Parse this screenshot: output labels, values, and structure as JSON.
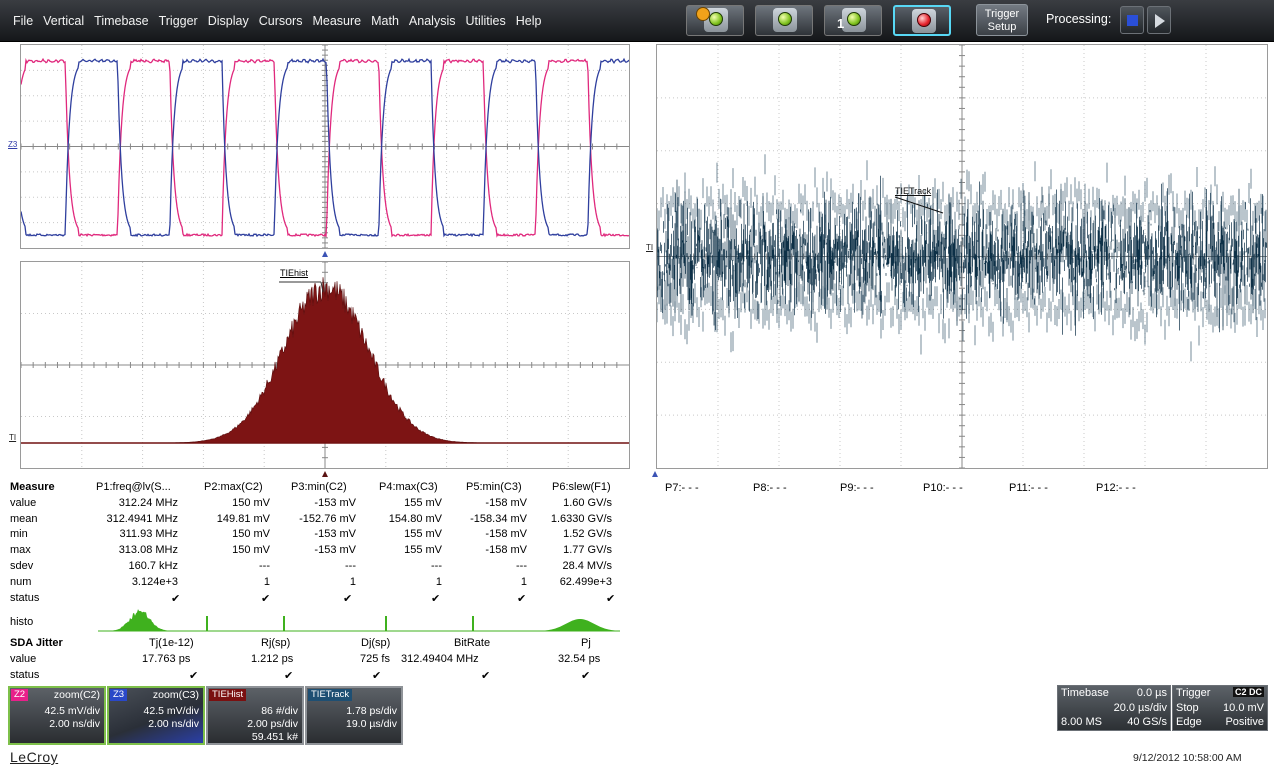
{
  "menu": {
    "items": [
      "File",
      "Vertical",
      "Timebase",
      "Trigger",
      "Display",
      "Cursors",
      "Measure",
      "Math",
      "Analysis",
      "Utilities",
      "Help"
    ]
  },
  "toolbar": {
    "trigger_setup_line1": "Trigger",
    "trigger_setup_line2": "Setup",
    "processing_label": "Processing:"
  },
  "grids": {
    "top_left_tag": "Z3",
    "hist_tag": "TI",
    "hist_label": "TIEhist",
    "track_tag": "TI",
    "track_label": "TIETrack"
  },
  "measure": {
    "header_label": "Measure",
    "params": [
      "P1:freq@lv(S...",
      "P2:max(C2)",
      "P3:min(C2)",
      "P4:max(C3)",
      "P5:min(C3)",
      "P6:slew(F1)"
    ],
    "rows": [
      {
        "label": "value",
        "cells": [
          "312.24 MHz",
          "150 mV",
          "-153 mV",
          "155 mV",
          "-158 mV",
          "1.60 GV/s"
        ]
      },
      {
        "label": "mean",
        "cells": [
          "312.4941 MHz",
          "149.81 mV",
          "-152.76 mV",
          "154.80 mV",
          "-158.34 mV",
          "1.6330 GV/s"
        ]
      },
      {
        "label": "min",
        "cells": [
          "311.93 MHz",
          "150 mV",
          "-153 mV",
          "155 mV",
          "-158 mV",
          "1.52 GV/s"
        ]
      },
      {
        "label": "max",
        "cells": [
          "313.08 MHz",
          "150 mV",
          "-153 mV",
          "155 mV",
          "-158 mV",
          "1.77 GV/s"
        ]
      },
      {
        "label": "sdev",
        "cells": [
          "160.7 kHz",
          "---",
          "---",
          "---",
          "---",
          "28.4 MV/s"
        ]
      },
      {
        "label": "num",
        "cells": [
          "3.124e+3",
          "1",
          "1",
          "1",
          "1",
          "62.499e+3"
        ]
      }
    ],
    "status_label": "status",
    "histo_label": "histo",
    "more_params": [
      "P7:- - -",
      "P8:- - -",
      "P9:- - -",
      "P10:- - -",
      "P11:- - -",
      "P12:- - -"
    ]
  },
  "jitter": {
    "header_label": "SDA Jitter",
    "columns": [
      "Tj(1e-12)",
      "Rj(sp)",
      "Dj(sp)",
      "BitRate",
      "Pj"
    ],
    "value_label": "value",
    "values": [
      "17.763 ps",
      "1.212 ps",
      "725 fs",
      "312.49404 MHz",
      "32.54 ps"
    ],
    "status_label": "status"
  },
  "descriptors": [
    {
      "chip": "Z2",
      "chip_color": "#e8208a",
      "title": "zoom(C2)",
      "line1": "42.5 mV/div",
      "line2": "2.00 ns/div",
      "line3": ""
    },
    {
      "chip": "Z3",
      "chip_color": "#2a48c8",
      "title": "zoom(C3)",
      "line1": "42.5 mV/div",
      "line2": "2.00 ns/div",
      "line3": ""
    },
    {
      "chip": "TIEHist",
      "chip_color": "#7a1010",
      "title": "",
      "line1": "86 #/div",
      "line2": "2.00 ps/div",
      "line3": "59.451 k#"
    },
    {
      "chip": "TIETrack",
      "chip_color": "#1e4f73",
      "title": "",
      "line1": "1.78 ps/div",
      "line2": "19.0 µs/div",
      "line3": ""
    }
  ],
  "timebase": {
    "label": "Timebase",
    "delay": "0.0 µs",
    "per_div": "20.0 µs/div",
    "samples": "8.00 MS",
    "rate": "40 GS/s"
  },
  "trigger": {
    "label": "Trigger",
    "badge": "C2 DC",
    "mode": "Stop",
    "level": "10.0 mV",
    "type": "Edge",
    "slope": "Positive"
  },
  "footer": {
    "brand": "LeCroy",
    "timestamp": "9/12/2012 10:58:00 AM"
  },
  "colors": {
    "c2_trace": "#e0297d",
    "c3_trace": "#2f3f9e",
    "histogram": "#7d1414",
    "track": "#0d3047",
    "histo_green": "#3fb11e"
  }
}
